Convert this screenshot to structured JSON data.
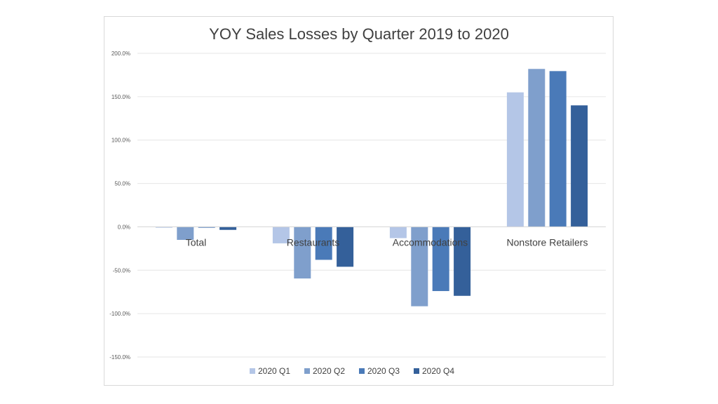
{
  "chart_data": {
    "type": "bar",
    "title": "YOY Sales Losses by Quarter 2019 to 2020",
    "categories": [
      "Total",
      "Restaurants",
      "Accommodations",
      "Nonstore Retailers"
    ],
    "series": [
      {
        "name": "2020 Q1",
        "color": "#b4c6e7",
        "values": [
          -1.0,
          -19.0,
          -13.0,
          155.0
        ]
      },
      {
        "name": "2020 Q2",
        "color": "#7f9fcc",
        "values": [
          -15.0,
          -59.5,
          -91.5,
          182.0
        ]
      },
      {
        "name": "2020 Q3",
        "color": "#4a7ab8",
        "values": [
          -1.0,
          -38.0,
          -74.0,
          179.5
        ]
      },
      {
        "name": "2020 Q4",
        "color": "#34609a",
        "values": [
          -3.5,
          -46.0,
          -79.5,
          140.0
        ]
      }
    ],
    "ylim": [
      -150,
      200
    ],
    "yticks": [
      200,
      150,
      100,
      50,
      0,
      -50,
      -100,
      -150
    ],
    "ytick_labels": [
      "200.0%",
      "150.0%",
      "100.0%",
      "50.0%",
      "0.0%",
      "-50.0%",
      "-100.0%",
      "-150.0%"
    ],
    "grid": true,
    "legend_position": "bottom",
    "xlabel": "",
    "ylabel": ""
  }
}
